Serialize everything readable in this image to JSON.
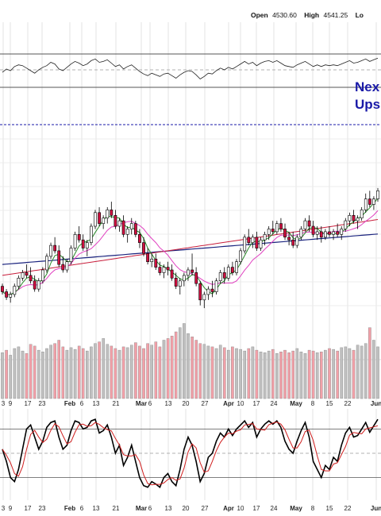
{
  "header": {
    "open_label": "Open",
    "open_value": "4530.60",
    "high_label": "High",
    "high_value": "4541.25",
    "low_label": "Lo"
  },
  "annotation": {
    "line1": "Nex",
    "line2": "Ups"
  },
  "colors": {
    "up": "#ffffff",
    "down": "#d01040",
    "wick": "#000000",
    "ma_fast": "#2a8a2a",
    "ma_mid": "#e040c0",
    "ma_slow_red": "#c81e3c",
    "ma_long": "#1a237e",
    "vol_up": "#c0c0c0",
    "vol_down": "#f2a0a8",
    "stoch_k": "#000000",
    "stoch_d": "#d01e1e",
    "annotation": "#1a1aa8",
    "dashed_line": "#1a1aa8"
  },
  "x_axis": {
    "labels": [
      "3",
      "9",
      "17",
      "23",
      "Feb",
      "6",
      "13",
      "21",
      "Mar",
      "6",
      "13",
      "20",
      "27",
      "Apr",
      "10",
      "17",
      "24",
      "May",
      "8",
      "15",
      "22",
      "Jun"
    ],
    "bold": [
      false,
      false,
      false,
      false,
      true,
      false,
      false,
      false,
      true,
      false,
      false,
      false,
      false,
      true,
      false,
      false,
      false,
      true,
      false,
      false,
      false,
      true
    ]
  },
  "chart_data": {
    "type": "candlestick",
    "ohlc": [
      [
        92,
        93,
        89,
        90
      ],
      [
        90,
        91,
        87,
        88
      ],
      [
        88,
        90,
        86,
        89
      ],
      [
        89,
        93,
        88,
        92
      ],
      [
        92,
        96,
        91,
        95
      ],
      [
        95,
        98,
        94,
        97
      ],
      [
        97,
        100,
        95,
        96
      ],
      [
        96,
        99,
        93,
        94
      ],
      [
        94,
        96,
        90,
        91
      ],
      [
        91,
        95,
        90,
        94
      ],
      [
        94,
        99,
        93,
        98
      ],
      [
        98,
        104,
        97,
        103
      ],
      [
        103,
        108,
        102,
        107
      ],
      [
        107,
        110,
        104,
        105
      ],
      [
        105,
        107,
        99,
        100
      ],
      [
        100,
        103,
        97,
        98
      ],
      [
        98,
        102,
        97,
        101
      ],
      [
        101,
        107,
        100,
        106
      ],
      [
        106,
        112,
        105,
        111
      ],
      [
        111,
        114,
        108,
        109
      ],
      [
        109,
        111,
        105,
        106
      ],
      [
        106,
        109,
        103,
        108
      ],
      [
        108,
        115,
        107,
        114
      ],
      [
        114,
        120,
        113,
        119
      ],
      [
        119,
        121,
        114,
        115
      ],
      [
        115,
        118,
        113,
        117
      ],
      [
        117,
        121,
        115,
        120
      ],
      [
        120,
        123,
        117,
        118
      ],
      [
        118,
        120,
        113,
        114
      ],
      [
        114,
        117,
        112,
        116
      ],
      [
        116,
        118,
        110,
        111
      ],
      [
        111,
        114,
        108,
        113
      ],
      [
        113,
        117,
        111,
        115
      ],
      [
        115,
        116,
        110,
        111
      ],
      [
        111,
        113,
        106,
        108
      ],
      [
        108,
        110,
        103,
        104
      ],
      [
        104,
        106,
        100,
        101
      ],
      [
        101,
        104,
        99,
        102
      ],
      [
        102,
        104,
        98,
        99
      ],
      [
        99,
        101,
        96,
        97
      ],
      [
        97,
        100,
        95,
        99
      ],
      [
        99,
        101,
        96,
        98
      ],
      [
        98,
        100,
        94,
        95
      ],
      [
        95,
        97,
        91,
        92
      ],
      [
        92,
        95,
        89,
        94
      ],
      [
        94,
        97,
        92,
        96
      ],
      [
        96,
        99,
        94,
        98
      ],
      [
        98,
        104,
        96,
        97
      ],
      [
        97,
        99,
        92,
        93
      ],
      [
        93,
        94,
        85,
        87
      ],
      [
        87,
        90,
        84,
        89
      ],
      [
        89,
        92,
        87,
        91
      ],
      [
        91,
        94,
        88,
        90
      ],
      [
        90,
        95,
        89,
        94
      ],
      [
        94,
        98,
        93,
        97
      ],
      [
        97,
        99,
        93,
        95
      ],
      [
        95,
        100,
        94,
        99
      ],
      [
        99,
        101,
        96,
        97
      ],
      [
        97,
        102,
        96,
        101
      ],
      [
        101,
        106,
        100,
        105
      ],
      [
        105,
        111,
        104,
        110
      ],
      [
        110,
        113,
        107,
        108
      ],
      [
        108,
        111,
        106,
        110
      ],
      [
        110,
        112,
        105,
        106
      ],
      [
        106,
        110,
        105,
        109
      ],
      [
        109,
        112,
        107,
        111
      ],
      [
        111,
        114,
        109,
        113
      ],
      [
        113,
        116,
        111,
        112
      ],
      [
        112,
        116,
        111,
        115
      ],
      [
        115,
        117,
        112,
        113
      ],
      [
        113,
        115,
        109,
        110
      ],
      [
        110,
        112,
        107,
        109
      ],
      [
        109,
        112,
        106,
        107
      ],
      [
        107,
        111,
        106,
        110
      ],
      [
        110,
        114,
        109,
        113
      ],
      [
        113,
        117,
        112,
        116
      ],
      [
        116,
        118,
        112,
        114
      ],
      [
        114,
        116,
        110,
        111
      ],
      [
        111,
        114,
        109,
        112
      ],
      [
        112,
        114,
        108,
        110
      ],
      [
        110,
        113,
        109,
        112
      ],
      [
        112,
        114,
        110,
        111
      ],
      [
        111,
        113,
        109,
        112
      ],
      [
        112,
        115,
        110,
        111
      ],
      [
        111,
        114,
        109,
        113
      ],
      [
        113,
        117,
        112,
        116
      ],
      [
        116,
        119,
        114,
        118
      ],
      [
        118,
        120,
        115,
        116
      ],
      [
        116,
        118,
        113,
        117
      ],
      [
        117,
        121,
        116,
        120
      ],
      [
        120,
        126,
        119,
        124
      ],
      [
        124,
        127,
        121,
        122
      ],
      [
        122,
        125,
        120,
        124
      ],
      [
        124,
        128,
        123,
        127
      ]
    ],
    "volume": [
      55,
      58,
      52,
      60,
      62,
      57,
      54,
      65,
      63,
      58,
      56,
      60,
      64,
      66,
      70,
      62,
      58,
      61,
      59,
      63,
      60,
      57,
      62,
      66,
      68,
      72,
      65,
      63,
      60,
      58,
      62,
      61,
      64,
      67,
      63,
      60,
      66,
      64,
      68,
      62,
      70,
      72,
      75,
      80,
      85,
      90,
      78,
      74,
      70,
      66,
      65,
      63,
      62,
      60,
      64,
      61,
      58,
      62,
      60,
      59,
      57,
      60,
      62,
      58,
      56,
      55,
      57,
      59,
      54,
      56,
      58,
      55,
      57,
      60,
      56,
      54,
      58,
      57,
      55,
      56,
      58,
      60,
      59,
      57,
      61,
      62,
      60,
      58,
      64,
      63,
      66,
      85,
      70,
      62
    ],
    "volume_up": [
      true,
      false,
      true,
      true,
      true,
      true,
      false,
      false,
      false,
      true,
      true,
      true,
      true,
      false,
      false,
      false,
      true,
      true,
      true,
      false,
      false,
      true,
      true,
      true,
      false,
      true,
      true,
      false,
      false,
      true,
      false,
      true,
      true,
      false,
      false,
      false,
      false,
      true,
      false,
      false,
      true,
      false,
      false,
      false,
      true,
      true,
      true,
      false,
      false,
      false,
      true,
      true,
      false,
      true,
      true,
      false,
      true,
      false,
      true,
      true,
      true,
      false,
      true,
      false,
      true,
      true,
      true,
      false,
      true,
      false,
      false,
      false,
      false,
      true,
      true,
      true,
      false,
      false,
      true,
      false,
      true,
      false,
      true,
      false,
      true,
      true,
      true,
      false,
      true,
      true,
      true,
      false,
      true,
      true
    ],
    "rsi": [
      48,
      52,
      50,
      55,
      57,
      56,
      53,
      50,
      47,
      51,
      54,
      56,
      60,
      58,
      52,
      50,
      54,
      58,
      61,
      59,
      56,
      58,
      62,
      64,
      60,
      61,
      63,
      59,
      55,
      57,
      52,
      55,
      57,
      53,
      49,
      46,
      44,
      47,
      45,
      43,
      46,
      47,
      44,
      41,
      45,
      48,
      50,
      49,
      45,
      40,
      43,
      47,
      46,
      50,
      53,
      51,
      54,
      52,
      55,
      58,
      61,
      58,
      60,
      56,
      59,
      61,
      62,
      60,
      62,
      59,
      56,
      55,
      54,
      57,
      59,
      61,
      58,
      55,
      57,
      55,
      57,
      56,
      57,
      56,
      58,
      60,
      62,
      59,
      60,
      62,
      64,
      61,
      63,
      65
    ],
    "stoch_k": [
      55,
      40,
      20,
      15,
      30,
      55,
      80,
      85,
      70,
      55,
      65,
      82,
      88,
      90,
      70,
      55,
      60,
      78,
      90,
      88,
      80,
      82,
      90,
      92,
      75,
      78,
      85,
      70,
      50,
      60,
      35,
      45,
      60,
      40,
      20,
      10,
      8,
      15,
      12,
      8,
      20,
      25,
      15,
      10,
      30,
      55,
      70,
      60,
      40,
      15,
      25,
      45,
      50,
      65,
      75,
      70,
      80,
      72,
      80,
      85,
      90,
      82,
      88,
      70,
      80,
      86,
      90,
      86,
      90,
      82,
      65,
      55,
      50,
      65,
      78,
      88,
      70,
      40,
      30,
      20,
      35,
      30,
      45,
      40,
      60,
      75,
      82,
      70,
      72,
      80,
      88,
      76,
      84,
      92
    ]
  }
}
